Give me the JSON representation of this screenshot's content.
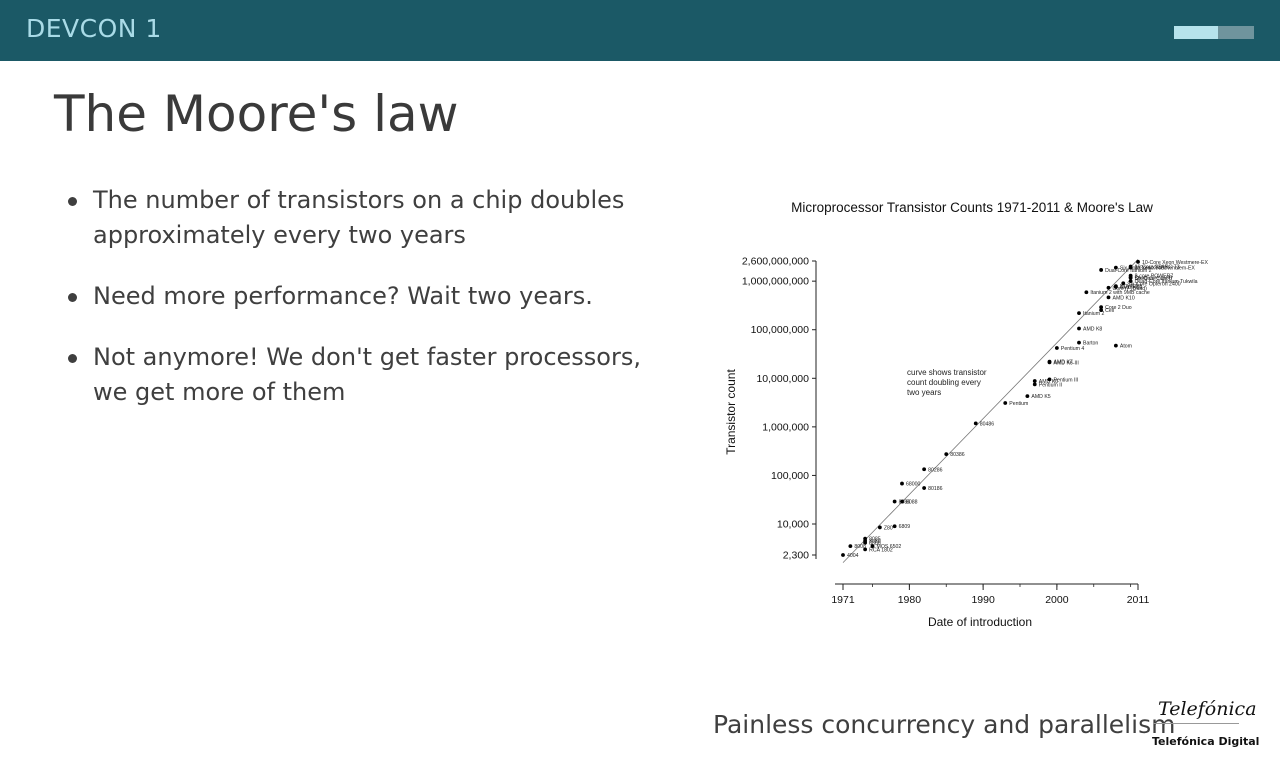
{
  "header": {
    "brand": "DEVCON 1",
    "progress": 0.55
  },
  "slide": {
    "title": "The Moore's law",
    "bullets": [
      "The number of transistors on a chip doubles approximately every two years",
      "Need more performance? Wait two years.",
      "Not anymore! We don't get faster processors, we get more of them"
    ]
  },
  "footer": {
    "text": "Painless concurrency and parallelism",
    "logo_script": "Telefónica",
    "logo_sub": "Telefónica Digital"
  },
  "chart_data": {
    "type": "scatter",
    "title": "Microprocessor Transistor Counts 1971-2011 & Moore's Law",
    "xlabel": "Date of introduction",
    "ylabel": "Transistor count",
    "yscale": "log",
    "xlim": [
      1971,
      2011
    ],
    "ylim": [
      2300,
      2600000000
    ],
    "x_ticks": [
      "1971",
      "1980",
      "1990",
      "2000",
      "2011"
    ],
    "y_ticks": [
      {
        "value": 2300,
        "label": "2,300"
      },
      {
        "value": 10000,
        "label": "10,000"
      },
      {
        "value": 100000,
        "label": "100,000"
      },
      {
        "value": 1000000,
        "label": "1,000,000"
      },
      {
        "value": 10000000,
        "label": "10,000,000"
      },
      {
        "value": 100000000,
        "label": "100,000,000"
      },
      {
        "value": 1000000000,
        "label": "1,000,000,000"
      },
      {
        "value": 2600000000,
        "label": "2,600,000,000"
      }
    ],
    "annotation": [
      "curve shows transistor",
      "count doubling every",
      "two years"
    ],
    "trend": {
      "x": [
        1971,
        2011
      ],
      "y": [
        1600,
        2800000000
      ]
    },
    "points": [
      {
        "x": 1971,
        "y": 2300,
        "label": "4004"
      },
      {
        "x": 1972,
        "y": 3500,
        "label": "8008"
      },
      {
        "x": 1974,
        "y": 4500,
        "label": "8080"
      },
      {
        "x": 1974,
        "y": 5000,
        "label": "8085"
      },
      {
        "x": 1974,
        "y": 4100,
        "label": "6800"
      },
      {
        "x": 1975,
        "y": 3510,
        "label": "MOS 6502"
      },
      {
        "x": 1976,
        "y": 8500,
        "label": "Z80"
      },
      {
        "x": 1974,
        "y": 3000,
        "label": "RCA 1802"
      },
      {
        "x": 1978,
        "y": 9000,
        "label": "6809"
      },
      {
        "x": 1978,
        "y": 29000,
        "label": "8086"
      },
      {
        "x": 1979,
        "y": 29000,
        "label": "8088"
      },
      {
        "x": 1979,
        "y": 68000,
        "label": "68000"
      },
      {
        "x": 1982,
        "y": 55000,
        "label": "80186"
      },
      {
        "x": 1982,
        "y": 134000,
        "label": "80286"
      },
      {
        "x": 1985,
        "y": 275000,
        "label": "80386"
      },
      {
        "x": 1989,
        "y": 1180000,
        "label": "80486"
      },
      {
        "x": 1993,
        "y": 3100000,
        "label": "Pentium"
      },
      {
        "x": 1996,
        "y": 4300000,
        "label": "AMD K5"
      },
      {
        "x": 1997,
        "y": 7500000,
        "label": "Pentium II"
      },
      {
        "x": 1997,
        "y": 8800000,
        "label": "AMD K6"
      },
      {
        "x": 1999,
        "y": 9500000,
        "label": "Pentium III"
      },
      {
        "x": 1999,
        "y": 21300000,
        "label": "AMD K6-III"
      },
      {
        "x": 1999,
        "y": 22000000,
        "label": "AMD K7"
      },
      {
        "x": 2000,
        "y": 42000000,
        "label": "Pentium 4"
      },
      {
        "x": 2003,
        "y": 54300000,
        "label": "Barton"
      },
      {
        "x": 2003,
        "y": 105900000,
        "label": "AMD K8"
      },
      {
        "x": 2008,
        "y": 47000000,
        "label": "Atom"
      },
      {
        "x": 2003,
        "y": 220000000,
        "label": "Itanium 2"
      },
      {
        "x": 2006,
        "y": 291000000,
        "label": "Core 2 Duo"
      },
      {
        "x": 2006,
        "y": 253000000,
        "label": "Cell"
      },
      {
        "x": 2007,
        "y": 463000000,
        "label": "AMD K10"
      },
      {
        "x": 2007,
        "y": 731000000,
        "label": "Core i7 (Quad)"
      },
      {
        "x": 2004,
        "y": 592000000,
        "label": "Itanium 2 with 9MB cache"
      },
      {
        "x": 2008,
        "y": 758000000,
        "label": "AMD K10"
      },
      {
        "x": 2008,
        "y": 789000000,
        "label": "POWER6"
      },
      {
        "x": 2009,
        "y": 904000000,
        "label": "Six-Core Opteron 2400"
      },
      {
        "x": 2006,
        "y": 1700000000,
        "label": "Dual-Core Itanium 2"
      },
      {
        "x": 2008,
        "y": 1900000000,
        "label": "Six-Core Xeon 7400"
      },
      {
        "x": 2010,
        "y": 1170000000,
        "label": "Six-Core Core i7"
      },
      {
        "x": 2010,
        "y": 1200000000,
        "label": "Quad-core z196"
      },
      {
        "x": 2010,
        "y": 1300000000,
        "label": "8-core POWER7"
      },
      {
        "x": 2010,
        "y": 1000000000,
        "label": "Quad-Core Itanium Tukwila"
      },
      {
        "x": 2010,
        "y": 1900000000,
        "label": "8-Core Xeon Nehalem-EX"
      },
      {
        "x": 2011,
        "y": 2500000000,
        "label": "10-Core Xeon Westmere-EX"
      },
      {
        "x": 2010,
        "y": 2000000000,
        "label": "16-Core SPARC T3"
      }
    ]
  }
}
